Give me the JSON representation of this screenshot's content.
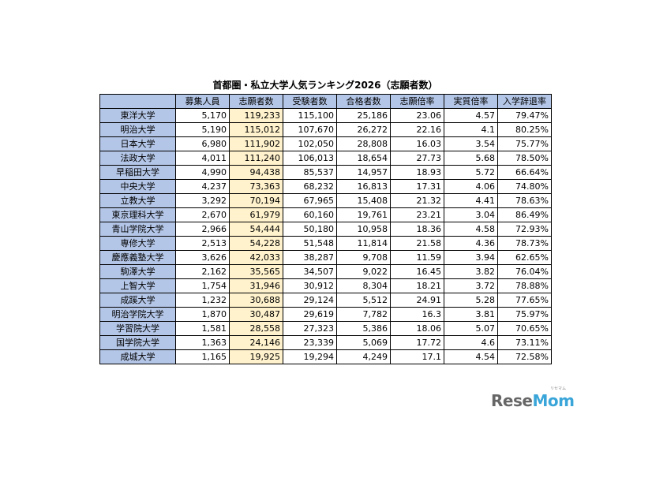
{
  "title": "首都圏・私立大学人気ランキング2026（志願者数）",
  "headers": [
    "",
    "募集人員",
    "志願者数",
    "受験者数",
    "合格者数",
    "志願倍率",
    "実質倍率",
    "入学辞退率"
  ],
  "rows": [
    [
      "東洋大学",
      "5,170",
      "119,233",
      "115,100",
      "25,186",
      "23.06",
      "4.57",
      "79.47%"
    ],
    [
      "明治大学",
      "5,190",
      "115,012",
      "107,670",
      "26,272",
      "22.16",
      "4.1",
      "80.25%"
    ],
    [
      "日本大学",
      "6,980",
      "111,902",
      "102,050",
      "28,808",
      "16.03",
      "3.54",
      "75.77%"
    ],
    [
      "法政大学",
      "4,011",
      "111,240",
      "106,013",
      "18,654",
      "27.73",
      "5.68",
      "78.50%"
    ],
    [
      "早稲田大学",
      "4,990",
      "94,438",
      "85,537",
      "14,957",
      "18.93",
      "5.72",
      "66.64%"
    ],
    [
      "中央大学",
      "4,237",
      "73,363",
      "68,232",
      "16,813",
      "17.31",
      "4.06",
      "74.80%"
    ],
    [
      "立教大学",
      "3,292",
      "70,194",
      "67,965",
      "15,408",
      "21.32",
      "4.41",
      "78.63%"
    ],
    [
      "東京理科大学",
      "2,670",
      "61,979",
      "60,160",
      "19,761",
      "23.21",
      "3.04",
      "86.49%"
    ],
    [
      "青山学院大学",
      "2,966",
      "54,444",
      "50,180",
      "10,958",
      "18.36",
      "4.58",
      "72.93%"
    ],
    [
      "専修大学",
      "2,513",
      "54,228",
      "51,548",
      "11,814",
      "21.58",
      "4.36",
      "78.73%"
    ],
    [
      "慶應義塾大学",
      "3,626",
      "42,033",
      "38,287",
      "9,708",
      "11.59",
      "3.94",
      "62.65%"
    ],
    [
      "駒澤大学",
      "2,162",
      "35,565",
      "34,507",
      "9,022",
      "16.45",
      "3.82",
      "76.04%"
    ],
    [
      "上智大学",
      "1,754",
      "31,946",
      "30,912",
      "8,304",
      "18.21",
      "3.72",
      "78.88%"
    ],
    [
      "成蹊大学",
      "1,232",
      "30,688",
      "29,124",
      "5,512",
      "24.91",
      "5.28",
      "77.65%"
    ],
    [
      "明治学院大学",
      "1,870",
      "30,487",
      "29,619",
      "7,782",
      "16.3",
      "3.81",
      "75.97%"
    ],
    [
      "学習院大学",
      "1,581",
      "28,558",
      "27,323",
      "5,386",
      "18.06",
      "5.07",
      "70.65%"
    ],
    [
      "国学院大学",
      "1,363",
      "24,146",
      "23,339",
      "5,069",
      "17.72",
      "4.6",
      "73.11%"
    ],
    [
      "成城大学",
      "1,165",
      "19,925",
      "19,294",
      "4,249",
      "17.1",
      "4.54",
      "72.58%"
    ]
  ],
  "logo": {
    "text_main": "Rese",
    "text_accent": "Mom",
    "ruby": "リセマム"
  },
  "colors": {
    "header_bg": "#b4c6e7",
    "highlight_bg": "#fff2cc",
    "logo_gray": "#666666",
    "logo_blue": "#3aa5d8"
  }
}
